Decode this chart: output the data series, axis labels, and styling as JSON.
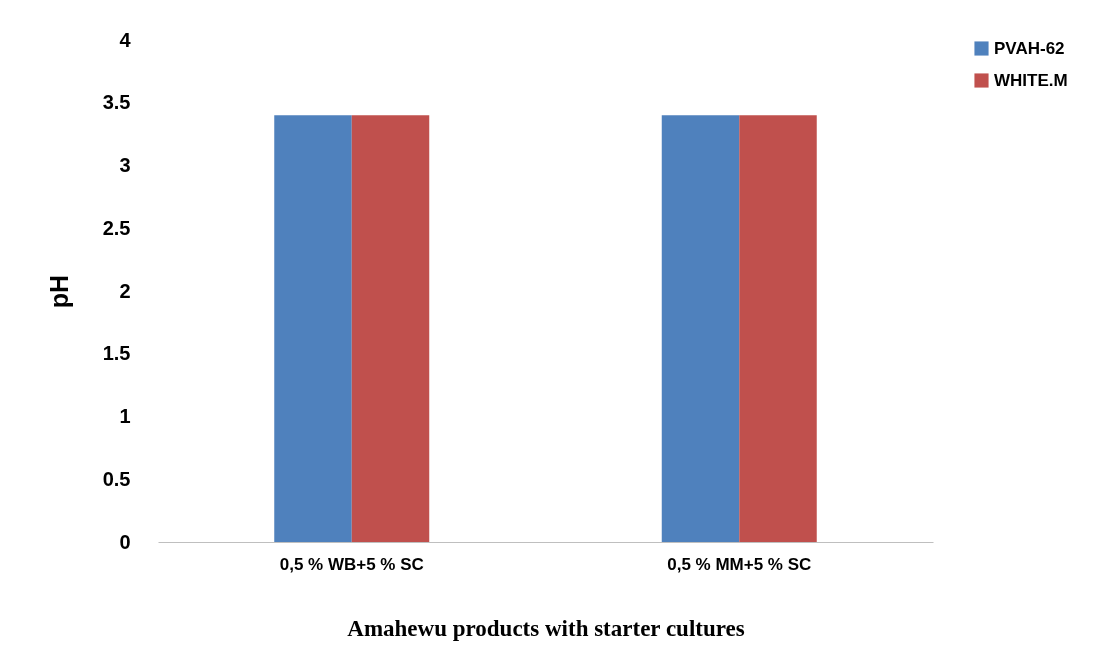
{
  "chart_data": {
    "type": "bar",
    "xlabel": "Amahewu products with starter cultures",
    "ylabel": "pH",
    "categories": [
      "0,5 % WB+5 % SC",
      "0,5 % MM+5 % SC"
    ],
    "series": [
      {
        "name": "PVAH-62",
        "color": "#4f81bd",
        "values": [
          3.4,
          3.4
        ]
      },
      {
        "name": "WHITE.M",
        "color": "#c0504d",
        "values": [
          3.4,
          3.4
        ]
      }
    ],
    "ylim": [
      0,
      4
    ],
    "yticks": [
      0,
      0.5,
      1,
      1.5,
      2,
      2.5,
      3,
      3.5,
      4
    ],
    "grid": false,
    "legend": "right"
  }
}
